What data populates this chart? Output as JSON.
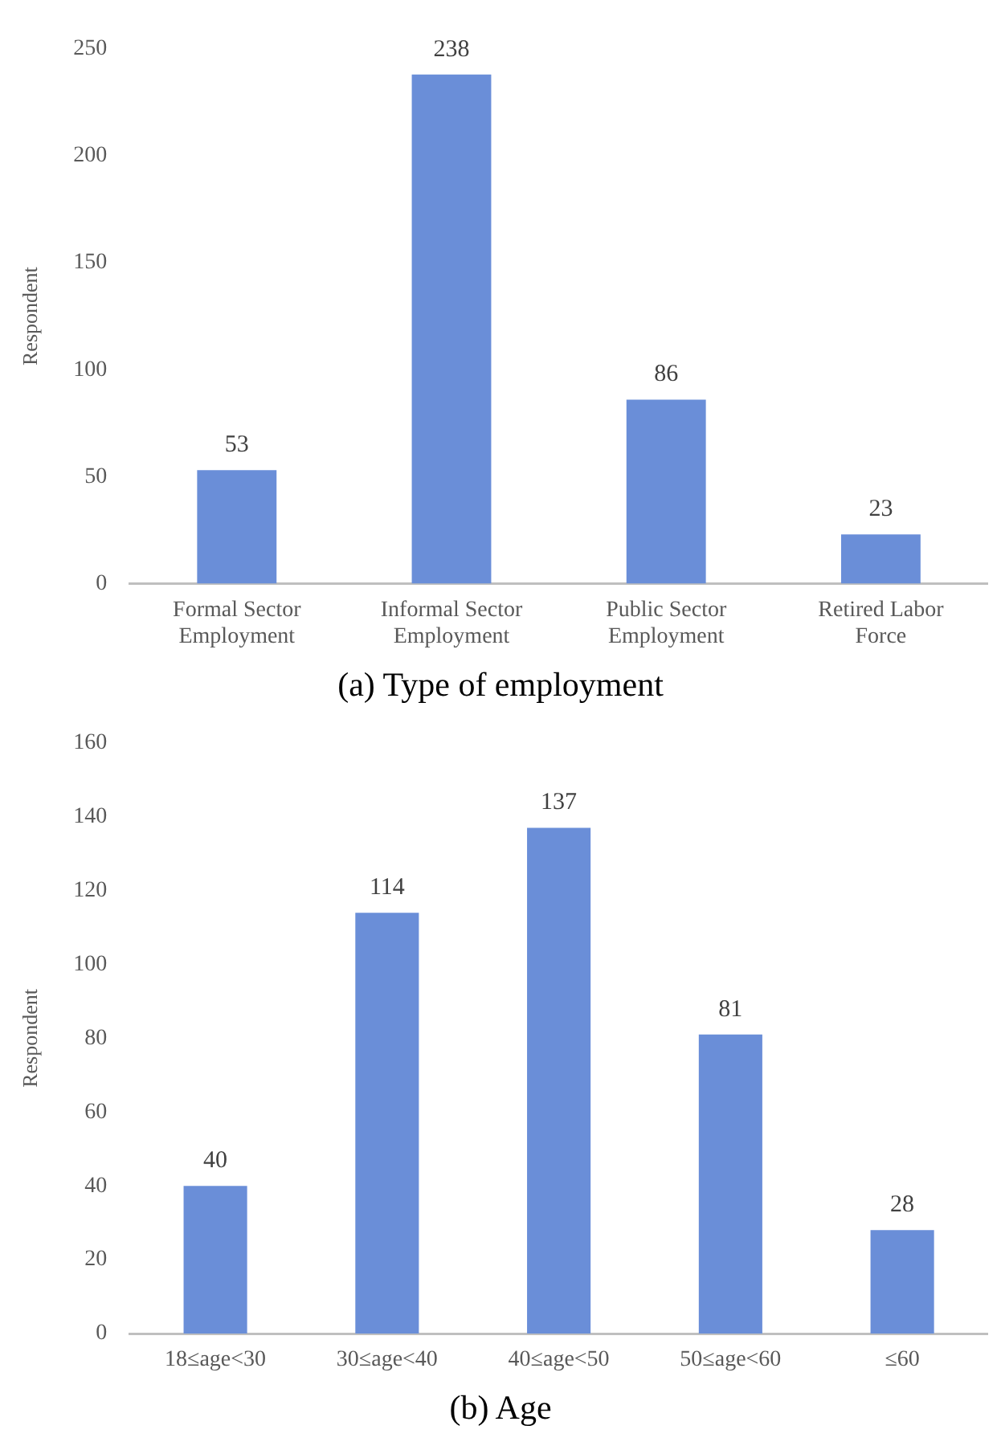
{
  "chart_data": [
    {
      "type": "bar",
      "title": "(a) Type of employment",
      "ylabel": "Respondent",
      "categories": [
        "Formal Sector Employment",
        "Informal Sector Employment",
        "Public Sector Employment",
        "Retired Labor Force"
      ],
      "values": [
        53,
        238,
        86,
        23
      ],
      "color": "#6a8ed8",
      "ylim": [
        0,
        250
      ],
      "yticks": [
        0,
        50,
        100,
        150,
        200,
        250
      ],
      "grid": false,
      "data_labels": true,
      "legend": false
    },
    {
      "type": "bar",
      "title": "(b) Age",
      "ylabel": "Respondent",
      "categories": [
        "18≤age<30",
        "30≤age<40",
        "40≤age<50",
        "50≤age<60",
        "≤60"
      ],
      "values": [
        40,
        114,
        137,
        81,
        28
      ],
      "color": "#6a8ed8",
      "ylim": [
        0,
        160
      ],
      "yticks": [
        0,
        20,
        40,
        60,
        80,
        100,
        120,
        140,
        160
      ],
      "grid": false,
      "data_labels": true,
      "legend": false
    }
  ]
}
